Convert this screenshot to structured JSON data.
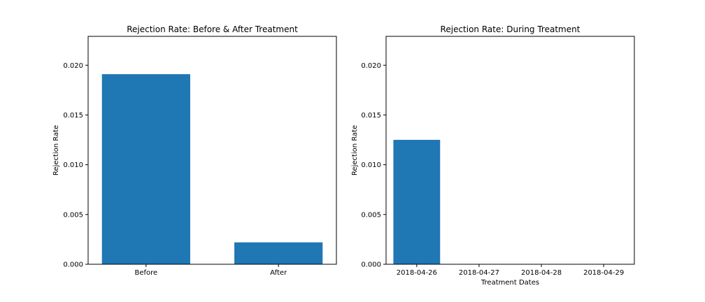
{
  "chart_data": [
    {
      "type": "bar",
      "title": "Rejection Rate: Before & After Treatment",
      "xlabel": "",
      "ylabel": "Rejection Rate",
      "categories": [
        "Before",
        "After"
      ],
      "values": [
        0.0191,
        0.0022
      ],
      "ylim": [
        0,
        0.0229
      ],
      "yticks": [
        0.0,
        0.005,
        0.01,
        0.015,
        0.02
      ],
      "ytick_labels": [
        "0.000",
        "0.005",
        "0.010",
        "0.015",
        "0.020"
      ],
      "bar_color": "#1f77b4",
      "grid": false
    },
    {
      "type": "bar",
      "title": "Rejection Rate: During Treatment",
      "xlabel": "Treatment Dates",
      "ylabel": "Rejection Rate",
      "categories": [
        "2018-04-26",
        "2018-04-27",
        "2018-04-28",
        "2018-04-29"
      ],
      "values": [
        0.0125,
        0,
        0,
        0
      ],
      "ylim": [
        0,
        0.0229
      ],
      "yticks": [
        0.0,
        0.005,
        0.01,
        0.015,
        0.02
      ],
      "ytick_labels": [
        "0.000",
        "0.005",
        "0.010",
        "0.015",
        "0.020"
      ],
      "bar_color": "#1f77b4",
      "grid": false
    }
  ]
}
